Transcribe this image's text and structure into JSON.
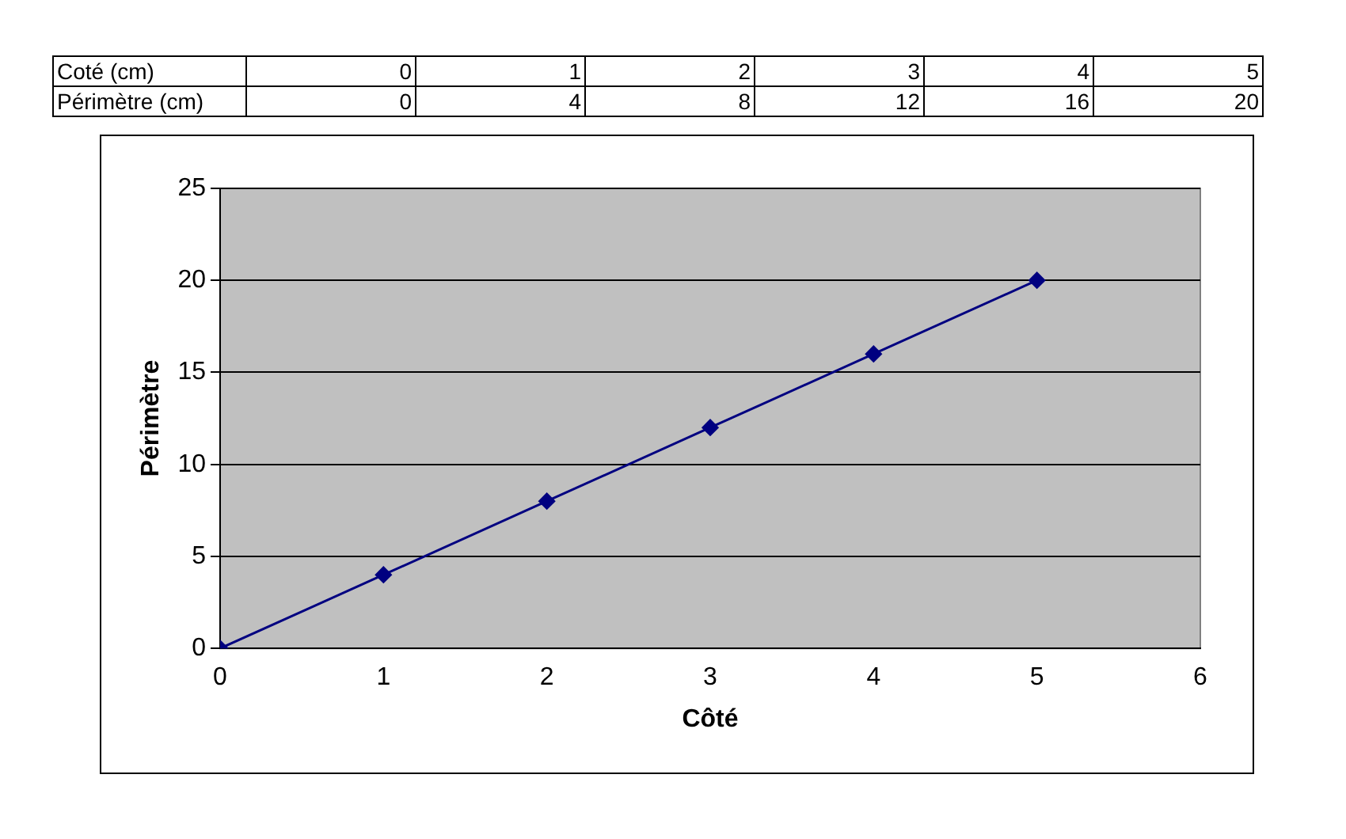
{
  "chart_data": [
    {
      "type": "heatmap",
      "xlabel": "Coté (cm)",
      "categories": [
        "0",
        "1",
        "2",
        "3",
        "4",
        "5"
      ],
      "y_categories": [
        "Périmètre (cm)"
      ],
      "cells": [
        [
          0,
          4,
          8,
          12,
          16,
          20
        ]
      ],
      "data_labels": true
    },
    {
      "type": "line",
      "xlabel": "Côté",
      "ylabel": "Périmètre",
      "x": [
        0,
        1,
        2,
        3,
        4,
        5
      ],
      "values": [
        0,
        4,
        8,
        12,
        16,
        20
      ],
      "color": "#000080",
      "xlim": [
        0,
        6
      ],
      "xticks": [
        0,
        1,
        2,
        3,
        4,
        5,
        6
      ],
      "ylim": [
        0,
        25
      ],
      "yticks": [
        0,
        5,
        10,
        15,
        20,
        25
      ],
      "grid": "y",
      "marker": "diamond",
      "line_style": "solid"
    }
  ]
}
